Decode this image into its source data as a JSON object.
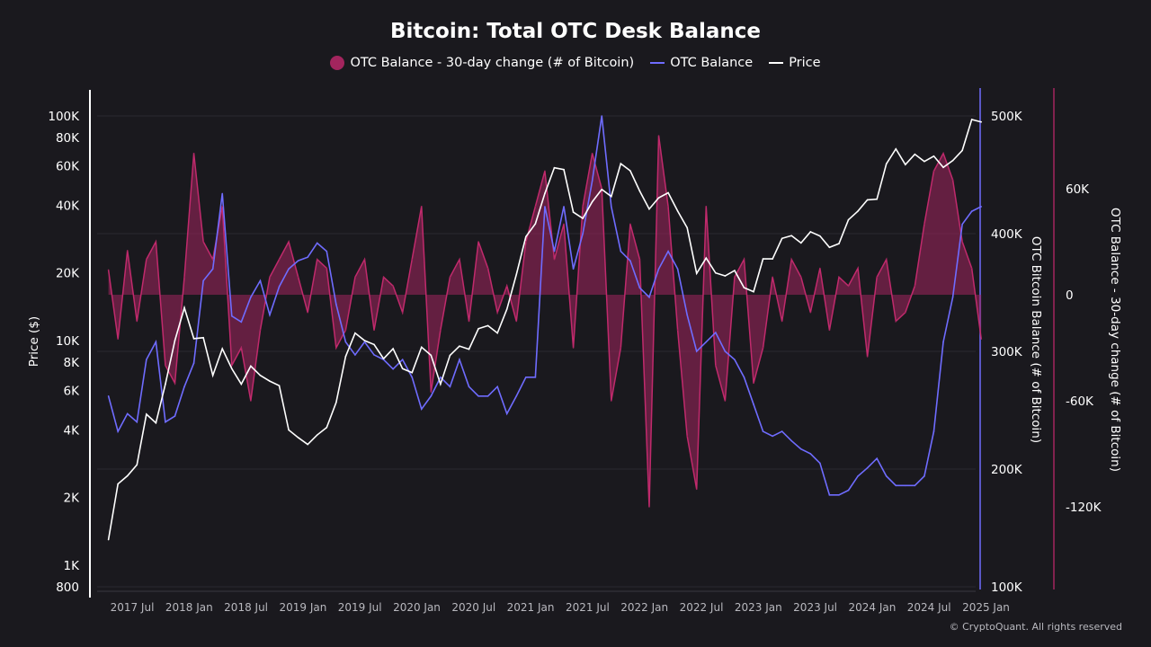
{
  "chart_data": {
    "type": "line",
    "title": "Bitcoin: Total OTC Desk Balance",
    "legend_placement": "top",
    "grid": true,
    "x_axis": {
      "ticks": [
        "2017 Jul",
        "2018 Jan",
        "2018 Jul",
        "2019 Jan",
        "2019 Jul",
        "2020 Jan",
        "2020 Jul",
        "2021 Jan",
        "2021 Jul",
        "2022 Jan",
        "2022 Jul",
        "2023 Jan",
        "2023 Jul",
        "2024 Jan",
        "2024 Jul",
        "2025 Jan"
      ],
      "tick_dates": [
        "2017-07",
        "2018-01",
        "2018-07",
        "2019-01",
        "2019-07",
        "2020-01",
        "2020-07",
        "2021-01",
        "2021-07",
        "2022-01",
        "2022-07",
        "2023-01",
        "2023-07",
        "2024-01",
        "2024-07",
        "2025-01"
      ]
    },
    "y_left": {
      "label": "Price ($)",
      "scale": "log",
      "range": [
        800,
        110000
      ],
      "ticks": [
        100000,
        80000,
        60000,
        40000,
        20000,
        10000,
        8000,
        6000,
        4000,
        2000,
        1000,
        800
      ],
      "tick_labels": [
        "100K",
        "80K",
        "60K",
        "40K",
        "20K",
        "10K",
        "8K",
        "6K",
        "4K",
        "2K",
        "1K",
        "800"
      ]
    },
    "y_right1": {
      "label": "OTC Bitcoin Balance (# of Bitcoin)",
      "range": [
        100000,
        520000
      ],
      "ticks": [
        500000,
        400000,
        300000,
        200000,
        100000
      ],
      "tick_labels": [
        "500K",
        "400K",
        "300K",
        "200K",
        "100K"
      ],
      "color": "#6f6cff"
    },
    "y_right2": {
      "label": "OTC Balance - 30-day change (# of Bitcoin)",
      "range": [
        -165000,
        110000
      ],
      "ticks": [
        60000,
        0,
        -60000,
        -120000
      ],
      "tick_labels": [
        "60K",
        "0",
        "-60K",
        "-120K"
      ],
      "color": "#a3255e"
    },
    "start_month": "2017-04",
    "series": [
      {
        "name": "OTC Balance - 30-day change (# of Bitcoin)",
        "type": "area",
        "axis": "y_right2",
        "color": "#a3255e",
        "values": [
          14000,
          -25000,
          25000,
          -15000,
          20000,
          30000,
          -40000,
          -50000,
          10000,
          80000,
          30000,
          20000,
          50000,
          -40000,
          -30000,
          -60000,
          -20000,
          10000,
          20000,
          30000,
          10000,
          -10000,
          20000,
          15000,
          -30000,
          -20000,
          10000,
          20000,
          -20000,
          10000,
          5000,
          -10000,
          20000,
          50000,
          -55000,
          -20000,
          10000,
          20000,
          -15000,
          30000,
          15000,
          -10000,
          5000,
          -15000,
          30000,
          50000,
          70000,
          20000,
          40000,
          -30000,
          50000,
          80000,
          60000,
          -60000,
          -30000,
          40000,
          20000,
          -120000,
          90000,
          50000,
          -20000,
          -80000,
          -110000,
          50000,
          -40000,
          -60000,
          10000,
          20000,
          -50000,
          -30000,
          10000,
          -15000,
          20000,
          10000,
          -10000,
          15000,
          -20000,
          10000,
          5000,
          15000,
          -35000,
          10000,
          20000,
          -15000,
          -10000,
          5000,
          40000,
          70000,
          80000,
          65000,
          30000,
          15000,
          -25000
        ]
      },
      {
        "name": "OTC Balance",
        "type": "line",
        "axis": "y_right1",
        "color": "#6f6cff",
        "values": [
          262000,
          232000,
          247000,
          240000,
          293000,
          308000,
          240000,
          245000,
          270000,
          290000,
          360000,
          370000,
          434000,
          330000,
          325000,
          346000,
          360000,
          331000,
          355000,
          370000,
          377000,
          380000,
          392000,
          385000,
          340000,
          308000,
          297000,
          308000,
          297000,
          293000,
          285000,
          293000,
          278000,
          251000,
          262000,
          278000,
          270000,
          293000,
          270000,
          262000,
          262000,
          270000,
          247000,
          262000,
          278000,
          278000,
          423000,
          385000,
          423000,
          370000,
          400000,
          445000,
          500000,
          423000,
          385000,
          377000,
          354000,
          346000,
          370000,
          385000,
          370000,
          331000,
          300000,
          308000,
          316000,
          300000,
          293000,
          278000,
          255000,
          232000,
          228000,
          232000,
          224000,
          217000,
          213000,
          205000,
          178000,
          178000,
          182000,
          194000,
          201000,
          209000,
          194000,
          186000,
          186000,
          186000,
          194000,
          232000,
          308000,
          346000,
          408000,
          419000,
          423000
        ]
      },
      {
        "name": "Price",
        "type": "line",
        "axis": "y_left",
        "color": "#ffffff",
        "values": [
          1300,
          2300,
          2500,
          2800,
          4700,
          4300,
          6400,
          10000,
          14000,
          10200,
          10300,
          7000,
          9200,
          7500,
          6400,
          7700,
          7000,
          6600,
          6300,
          4000,
          3700,
          3450,
          3800,
          4100,
          5300,
          8500,
          10800,
          10000,
          9600,
          8300,
          9200,
          7500,
          7200,
          9350,
          8600,
          6400,
          8600,
          9450,
          9150,
          11300,
          11650,
          10800,
          13800,
          19700,
          29000,
          33100,
          45200,
          58800,
          57700,
          37300,
          35000,
          41500,
          47100,
          43800,
          61300,
          57000,
          46300,
          38500,
          43200,
          45500,
          37700,
          31800,
          19900,
          23300,
          20000,
          19400,
          20500,
          17200,
          16500,
          23100,
          23100,
          28500,
          29300,
          27200,
          30500,
          29200,
          26000,
          27000,
          34500,
          37700,
          42300,
          42600,
          61200,
          71300,
          60700,
          67500,
          62700,
          66200,
          59000,
          63300,
          70200,
          96400,
          94000
        ]
      }
    ],
    "credit": "© CryptoQuant. All rights reserved"
  }
}
